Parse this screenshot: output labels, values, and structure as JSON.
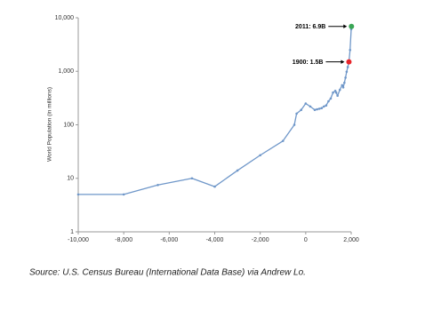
{
  "chart_data": {
    "type": "line",
    "log_scale": true,
    "y_label": "World Population (in millions)",
    "x": [
      -10000,
      -8000,
      -6500,
      -5000,
      -4000,
      -3000,
      -2000,
      -1000,
      -500,
      -400,
      -200,
      0,
      200,
      400,
      500,
      600,
      700,
      800,
      900,
      1000,
      1100,
      1200,
      1300,
      1340,
      1400,
      1500,
      1600,
      1650,
      1700,
      1750,
      1800,
      1850,
      1900,
      1950,
      2000,
      2011
    ],
    "series": [
      {
        "color": "#6f97c9",
        "values": [
          5,
          5,
          7.5,
          10,
          7,
          14,
          27,
          50,
          100,
          162,
          190,
          250,
          220,
          190,
          195,
          200,
          205,
          220,
          230,
          275,
          310,
          400,
          430,
          400,
          350,
          450,
          550,
          500,
          610,
          760,
          980,
          1200,
          1500,
          2500,
          6100,
          6900
        ]
      }
    ],
    "xlim": [
      -10000,
      2000
    ],
    "xticks": [
      {
        "value": -10000,
        "label": "-10,000"
      },
      {
        "value": -8000,
        "label": "-8,000"
      },
      {
        "value": -6000,
        "label": "-6,000"
      },
      {
        "value": -4000,
        "label": "-4,000"
      },
      {
        "value": -2000,
        "label": "-2,000"
      },
      0,
      {
        "value": 2000,
        "label": "2,000"
      }
    ],
    "ylim": [
      1,
      10000
    ],
    "yticks": [
      1,
      10,
      100,
      {
        "value": 1000,
        "label": "1,000"
      },
      {
        "value": 10000,
        "label": "10,000"
      }
    ],
    "annotations": [
      {
        "label": "2011: 6.9B",
        "x": 2011,
        "y": 6900,
        "color": "#3aa655"
      },
      {
        "label": "1900: 1.5B",
        "x": 1900,
        "y": 1500,
        "color": "#e8262b"
      }
    ],
    "source": "Source:  U.S. Census Bureau (International Data Base) via Andrew Lo."
  }
}
